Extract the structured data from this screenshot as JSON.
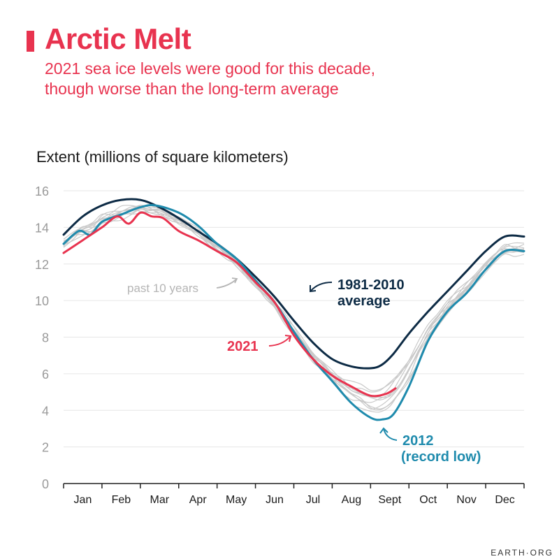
{
  "header": {
    "title": "Arctic Melt",
    "subtitle_1": "2021 sea ice levels were good for this decade,",
    "subtitle_2": "though worse than the long-term average"
  },
  "source": "EARTH·ORG",
  "colors": {
    "accent": "#e8334f",
    "average": "#0d2b45",
    "record": "#1f8bad",
    "past": "#c9c9c9",
    "grid": "#e6e6e6"
  },
  "chart_data": {
    "type": "line",
    "title": "Arctic Melt",
    "ylabel": "Extent (millions of square kilometers)",
    "ylim": [
      0,
      16
    ],
    "yticks": [
      0,
      2,
      4,
      6,
      8,
      10,
      12,
      14,
      16
    ],
    "months": [
      "Jan",
      "Feb",
      "Mar",
      "Apr",
      "May",
      "Jun",
      "Jul",
      "Aug",
      "Sept",
      "Oct",
      "Nov",
      "Dec"
    ],
    "grid": true,
    "annotations": {
      "average": [
        "1981-2010",
        "average"
      ],
      "record": [
        "2012",
        "(record low)"
      ],
      "y2021": "2021",
      "past": "past 10 years"
    },
    "series": [
      {
        "name": "1981-2010 average",
        "color": "#0d2b45",
        "x": [
          0,
          0.5,
          1,
          1.5,
          2,
          2.5,
          3,
          3.5,
          4,
          4.5,
          5,
          5.5,
          6,
          6.5,
          7,
          7.5,
          8,
          8.3,
          8.6,
          9,
          9.5,
          10,
          10.5,
          11,
          11.5,
          12
        ],
        "values": [
          13.6,
          14.6,
          15.2,
          15.5,
          15.5,
          15.1,
          14.5,
          13.8,
          13.1,
          12.3,
          11.3,
          10.2,
          8.9,
          7.7,
          6.8,
          6.4,
          6.3,
          6.5,
          7.1,
          8.2,
          9.4,
          10.5,
          11.6,
          12.7,
          13.5,
          13.5
        ]
      },
      {
        "name": "2012",
        "color": "#1f8bad",
        "x": [
          0,
          0.4,
          0.7,
          1,
          1.5,
          2,
          2.4,
          3,
          3.5,
          4,
          4.5,
          5,
          5.5,
          6,
          6.5,
          7,
          7.5,
          8,
          8.3,
          8.6,
          9,
          9.5,
          10,
          10.5,
          11,
          11.5,
          12
        ],
        "values": [
          13.1,
          13.8,
          13.6,
          14.3,
          14.7,
          15.1,
          15.2,
          14.8,
          14.1,
          13.1,
          12.3,
          11.1,
          9.9,
          8.3,
          6.8,
          5.6,
          4.4,
          3.6,
          3.5,
          3.8,
          5.3,
          7.8,
          9.4,
          10.4,
          11.7,
          12.7,
          12.7
        ]
      },
      {
        "name": "2021",
        "color": "#e8334f",
        "x": [
          0,
          0.5,
          1,
          1.4,
          1.7,
          2,
          2.3,
          2.6,
          3,
          3.5,
          4,
          4.5,
          5,
          5.5,
          6,
          6.5,
          7,
          7.5,
          8,
          8.4,
          8.65
        ],
        "values": [
          12.6,
          13.3,
          14.0,
          14.6,
          14.2,
          14.8,
          14.6,
          14.5,
          13.8,
          13.3,
          12.7,
          12.1,
          11.0,
          9.9,
          8.1,
          6.8,
          5.9,
          5.3,
          4.8,
          4.9,
          5.2
        ]
      }
    ]
  }
}
